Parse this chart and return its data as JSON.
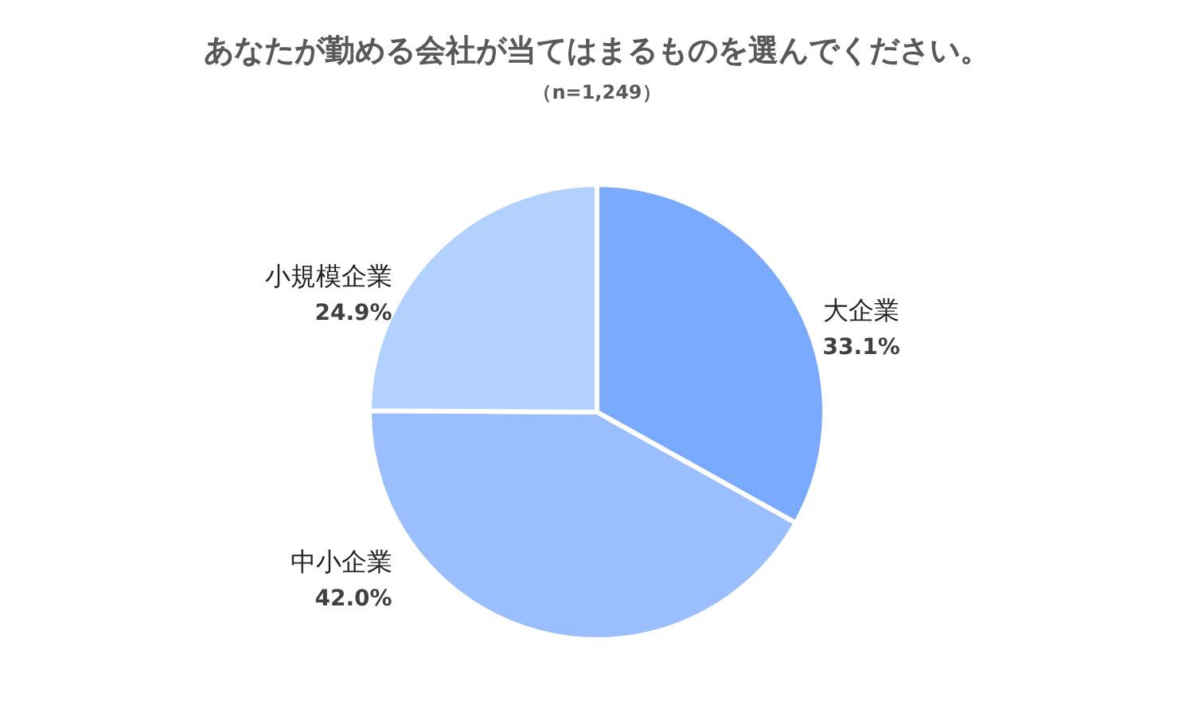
{
  "chart_data": {
    "type": "pie",
    "title": "あなたが勤める会社が当てはまるものを選んでください。",
    "subtitle": "（n=1,249）",
    "categories": [
      "大企業",
      "中小企業",
      "小規模企業"
    ],
    "values": [
      33.1,
      42.0,
      24.9
    ],
    "colors": [
      "#79aafe",
      "#9bbffe",
      "#b3d1fe"
    ],
    "value_labels": [
      "33.1%",
      "42.0%",
      "24.9%"
    ]
  }
}
